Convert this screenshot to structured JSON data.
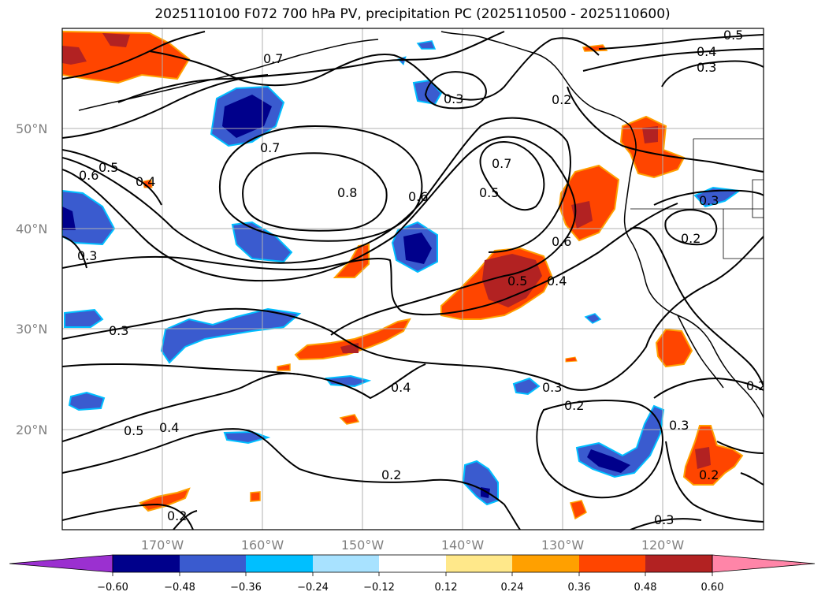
{
  "title": "2025110100 F072 700 hPa PV, precipitation PC (2025110500 - 2025110600)",
  "lat_labels": [
    "50°N",
    "40°N",
    "30°N",
    "20°N"
  ],
  "lon_labels": [
    "170°W",
    "160°W",
    "150°W",
    "140°W",
    "130°W",
    "120°W"
  ],
  "colorbar": {
    "ticks": [
      "−0.60",
      "−0.48",
      "−0.36",
      "−0.24",
      "−0.12",
      "0.12",
      "0.24",
      "0.36",
      "0.48",
      "0.60"
    ],
    "colors": [
      "#9b30d0",
      "#00008b",
      "#3a5bcf",
      "#00bfff",
      "#a8e2ff",
      "#ffffff",
      "#ffe88a",
      "#ffa000",
      "#ff4500",
      "#b22222",
      "#ff85a8"
    ]
  },
  "contour_labels": [
    "0.5",
    "0.4",
    "0.3",
    "0.7",
    "0.3",
    "0.7",
    "0.8",
    "0.6",
    "0.7",
    "0.5",
    "0.6",
    "0.5",
    "0.4",
    "0.5",
    "0.6",
    "0.4",
    "0.3",
    "0.3",
    "0.2",
    "0.3",
    "0.3",
    "0.2",
    "0.3",
    "0.2",
    "0.4",
    "0.2",
    "0.5",
    "0.4",
    "0.2",
    "0.2",
    "0.3",
    "0.2"
  ],
  "chart_data": {
    "type": "map",
    "title": "2025110100 F072 700 hPa PV, precipitation PC (2025110500 - 2025110600)",
    "fields": [
      "700 hPa PV (contours)",
      "precipitation PC (shaded)"
    ],
    "lon_range": [
      "180°W",
      "110°W"
    ],
    "lat_range": [
      "10°N",
      "60°N"
    ],
    "contour_levels": [
      0.2,
      0.3,
      0.4,
      0.5,
      0.6,
      0.7,
      0.8
    ],
    "colorbar_levels": [
      -0.6,
      -0.48,
      -0.36,
      -0.24,
      -0.12,
      0.12,
      0.24,
      0.36,
      0.48,
      0.6
    ],
    "gridlines": true
  }
}
